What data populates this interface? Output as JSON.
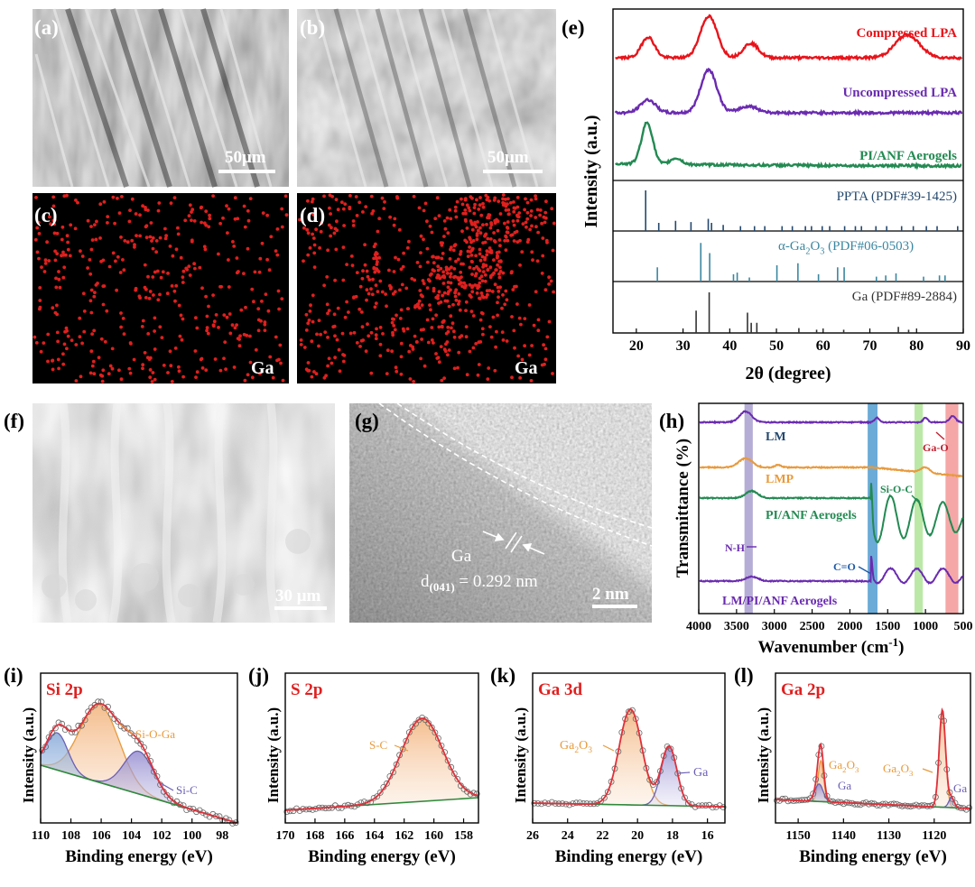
{
  "panels": {
    "a": {
      "label": "(a)",
      "scale": "50μm"
    },
    "b": {
      "label": "(b)",
      "scale": "50μm"
    },
    "c": {
      "label": "(c)",
      "element": "Ga"
    },
    "d": {
      "label": "(d)",
      "element": "Ga"
    },
    "e": {
      "label": "(e)"
    },
    "f": {
      "label": "(f)",
      "scale": "30 μm"
    },
    "g": {
      "label": "(g)",
      "element": "Ga",
      "d_prefix": "d",
      "d_sub": "(041)",
      "d_value": " = 0.292 nm",
      "scale": "2 nm"
    },
    "h": {
      "label": "(h)"
    },
    "i": {
      "label": "(i)"
    },
    "j": {
      "label": "(j)"
    },
    "k": {
      "label": "(k)"
    },
    "l": {
      "label": "(l)"
    }
  },
  "colors": {
    "compressed": "#e8141b",
    "uncompressed": "#6a2bb0",
    "aerogel": "#238a52",
    "pdf_ppta": "#24486e",
    "pdf_ga2o3": "#3b87a0",
    "pdf_ga": "#333333",
    "fit": "#e0303a",
    "baseline": "#2f8a3a",
    "peak_orange": "#e89a3c",
    "peak_purple": "#6b5fb5",
    "panel_label_red": "#e02020",
    "band_purple": "#9d92c8",
    "band_blue": "#3a8fc9",
    "band_green": "#a6e08a",
    "band_red": "#f28a8a"
  },
  "chart_data": [
    {
      "panel": "e",
      "type": "line",
      "xlabel": "2θ (degree)",
      "ylabel": "Intensity (a.u.)",
      "xlim": [
        15,
        90
      ],
      "xticks": [
        20,
        30,
        40,
        50,
        60,
        70,
        80,
        90
      ],
      "series": [
        {
          "name": "Compressed LPA",
          "peaks": [
            [
              22.5,
              0.5
            ],
            [
              35.5,
              1.0
            ],
            [
              44.5,
              0.35
            ],
            [
              78,
              0.55
            ]
          ]
        },
        {
          "name": "Uncompressed LPA",
          "peaks": [
            [
              22.5,
              0.3
            ],
            [
              35.5,
              1.0
            ],
            [
              44,
              0.15
            ]
          ]
        },
        {
          "name": "PI/ANF Aerogels",
          "peaks": [
            [
              22.3,
              1.0
            ],
            [
              28.5,
              0.15
            ]
          ]
        }
      ],
      "references": [
        {
          "name": "PPTA (PDF#39-1425)",
          "lines": [
            [
              22,
              1.0
            ],
            [
              24.8,
              0.2
            ],
            [
              28.4,
              0.25
            ],
            [
              31.7,
              0.22
            ],
            [
              35.4,
              0.3
            ],
            [
              36.1,
              0.2
            ],
            [
              38.6,
              0.15
            ],
            [
              42.3,
              0.12
            ],
            [
              45.3,
              0.12
            ],
            [
              47.5,
              0.12
            ],
            [
              51.2,
              0.12
            ],
            [
              53.4,
              0.12
            ],
            [
              56.2,
              0.12
            ],
            [
              57.5,
              0.12
            ],
            [
              59.8,
              0.12
            ],
            [
              61.4,
              0.12
            ],
            [
              64.6,
              0.12
            ],
            [
              66.9,
              0.12
            ],
            [
              68.2,
              0.12
            ],
            [
              71.3,
              0.12
            ],
            [
              73.6,
              0.12
            ],
            [
              76.8,
              0.12
            ],
            [
              79.3,
              0.12
            ],
            [
              82.1,
              0.12
            ],
            [
              84.4,
              0.12
            ],
            [
              88.8,
              0.12
            ]
          ]
        },
        {
          "name": "α-Ga2O3 (PDF#06-0503)",
          "name_parts": [
            "α-Ga",
            "2",
            "O",
            "3",
            " (PDF#06-0503)"
          ],
          "lines": [
            [
              24.5,
              0.35
            ],
            [
              33.8,
              0.95
            ],
            [
              35.7,
              0.7
            ],
            [
              40.8,
              0.18
            ],
            [
              41.6,
              0.22
            ],
            [
              44.2,
              0.1
            ],
            [
              50.1,
              0.4
            ],
            [
              54.6,
              0.45
            ],
            [
              59.0,
              0.18
            ],
            [
              63.1,
              0.35
            ],
            [
              64.5,
              0.35
            ],
            [
              71.4,
              0.12
            ],
            [
              73.4,
              0.15
            ],
            [
              75.6,
              0.2
            ],
            [
              81.5,
              0.12
            ],
            [
              84.9,
              0.15
            ],
            [
              86.1,
              0.15
            ]
          ]
        },
        {
          "name": "Ga (PDF#89-2884)",
          "lines": [
            [
              32.8,
              0.55
            ],
            [
              35.6,
              1.0
            ],
            [
              43.8,
              0.5
            ],
            [
              44.6,
              0.25
            ],
            [
              45.8,
              0.25
            ],
            [
              54.8,
              0.12
            ],
            [
              58.6,
              0.08
            ],
            [
              64.4,
              0.08
            ],
            [
              76.1,
              0.15
            ],
            [
              78.3,
              0.08
            ]
          ]
        }
      ]
    },
    {
      "panel": "h",
      "type": "line",
      "xlabel": "Wavenumber (cm",
      "xlabel_sup": "-1",
      "xlabel_end": ")",
      "ylabel": "Transmittance (%)",
      "xlim": [
        4000,
        500
      ],
      "xticks": [
        4000,
        3500,
        3000,
        2500,
        2000,
        1500,
        1000,
        500
      ],
      "series": [
        {
          "name": "LM"
        },
        {
          "name": "LMP"
        },
        {
          "name": "PI/ANF Aerogels"
        },
        {
          "name": "LM/PI/ANF Aerogels"
        }
      ],
      "bands": [
        [
          3340,
          "N-H"
        ],
        [
          1700,
          "C=O"
        ],
        [
          1090,
          "Si-O-C"
        ],
        [
          650,
          "Ga-O"
        ]
      ],
      "annotations": [
        "N-H",
        "C=O",
        "Si-O-C",
        "Ga-O"
      ]
    },
    {
      "panel": "i",
      "type": "line",
      "title": "Si 2p",
      "xlabel": "Binding energy (eV)",
      "ylabel": "Intensity (a.u.)",
      "xlim": [
        110,
        97
      ],
      "xticks": [
        110,
        108,
        106,
        104,
        102,
        100,
        98
      ],
      "components": [
        {
          "name": "Si-O-Ga",
          "center": 106.1,
          "height": 1.0,
          "width": 1.3
        },
        {
          "name": "Si-C",
          "center": 103.5,
          "height": 0.55,
          "width": 1.0
        },
        {
          "name": "",
          "center": 108.9,
          "height": 0.48,
          "width": 0.7
        }
      ]
    },
    {
      "panel": "j",
      "type": "line",
      "title": "S 2p",
      "xlabel": "Binding energy (eV)",
      "ylabel": "Intensity (a.u.)",
      "xlim": [
        170,
        157
      ],
      "xticks": [
        170,
        168,
        166,
        164,
        162,
        160,
        158
      ],
      "components": [
        {
          "name": "S-C",
          "center": 160.8,
          "height": 1.0,
          "width": 1.4
        }
      ]
    },
    {
      "panel": "k",
      "type": "line",
      "title": "Ga 3d",
      "xlabel": "Binding energy (eV)",
      "ylabel": "Intensity (a.u.)",
      "xlim": [
        26,
        15
      ],
      "xticks": [
        26,
        24,
        22,
        20,
        18,
        16
      ],
      "components": [
        {
          "name": "Ga2O3",
          "label_parts": [
            "Ga",
            "2",
            "O",
            "3"
          ],
          "center": 20.4,
          "height": 1.0,
          "width": 0.65
        },
        {
          "name": "Ga",
          "center": 18.2,
          "height": 0.62,
          "width": 0.45
        }
      ]
    },
    {
      "panel": "l",
      "type": "line",
      "title": "Ga 2p",
      "xlabel": "Binding energy (eV)",
      "ylabel": "Intensity (a.u.)",
      "xlim": [
        1155,
        1112
      ],
      "xticks": [
        1150,
        1140,
        1130,
        1120
      ],
      "components": [
        {
          "name": "Ga2O3",
          "label_parts": [
            "Ga",
            "2",
            "O",
            "3"
          ],
          "center": 1145.0,
          "height": 0.42,
          "width": 0.6
        },
        {
          "name": "Ga",
          "center": 1145.4,
          "height": 0.18,
          "width": 0.9
        },
        {
          "name": "Ga2O3",
          "label_parts": [
            "Ga",
            "2",
            "O",
            "3"
          ],
          "center": 1118.2,
          "height": 1.0,
          "width": 0.7
        },
        {
          "name": "Ga",
          "center": 1116.2,
          "height": 0.1,
          "width": 0.6
        }
      ]
    }
  ]
}
